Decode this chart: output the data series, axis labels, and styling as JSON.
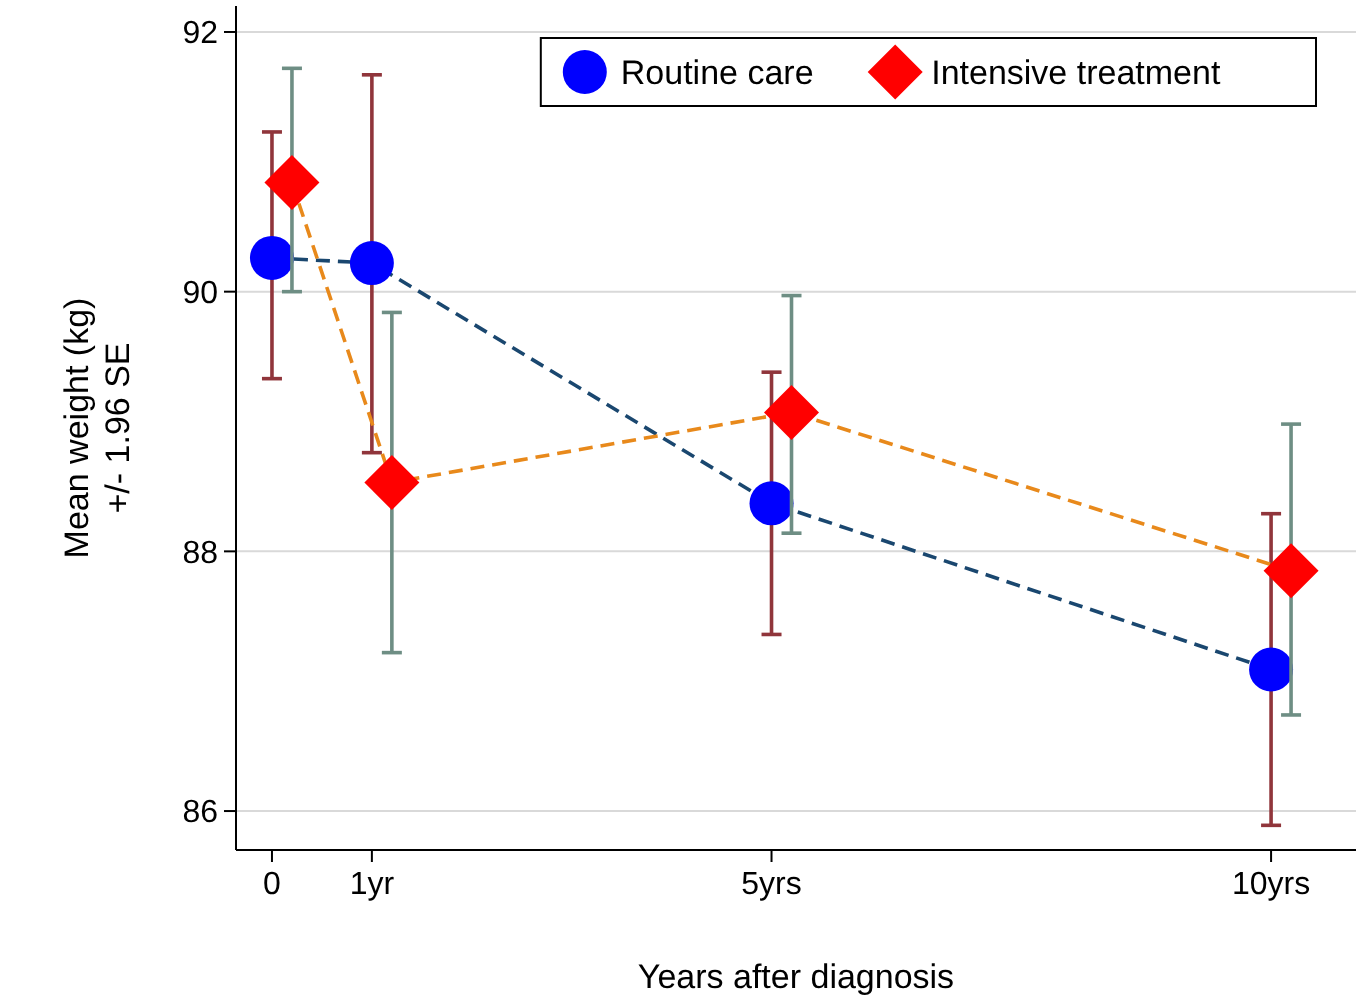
{
  "chart_data": {
    "type": "line",
    "xlabel": "Years after diagnosis",
    "ylabel": "Mean weight (kg)\n+/- 1.96 SE",
    "xlim": [
      -0.36,
      10.85
    ],
    "xticks": [
      0,
      {
        "value": 1,
        "label": "1yr"
      },
      {
        "value": 5,
        "label": "5yrs"
      },
      {
        "value": 10,
        "label": "10yrs"
      }
    ],
    "ylim": [
      85.7,
      92.2
    ],
    "yticks": [
      86,
      88,
      90,
      92
    ],
    "grid": "y",
    "legend": "top right",
    "line_style": "dashed",
    "series": [
      {
        "name": "Routine care",
        "color": "#0000ff",
        "marker": "circle",
        "x": [
          0,
          1,
          5,
          10
        ],
        "values": [
          90.26,
          90.22,
          88.37,
          87.09
        ],
        "errors": [
          [
            89.33,
            91.23
          ],
          [
            88.76,
            91.67
          ],
          [
            87.36,
            89.38
          ],
          [
            85.89,
            88.29
          ]
        ]
      },
      {
        "name": "Intensive treatment",
        "color": "#ff0000",
        "marker": "diamond",
        "x": [
          0.2,
          1.2,
          5.2,
          10.2
        ],
        "values": [
          90.84,
          88.53,
          89.07,
          87.85
        ],
        "errors": [
          [
            90.0,
            91.72
          ],
          [
            87.22,
            89.84
          ],
          [
            88.14,
            89.97
          ],
          [
            86.74,
            88.98
          ]
        ]
      }
    ]
  }
}
